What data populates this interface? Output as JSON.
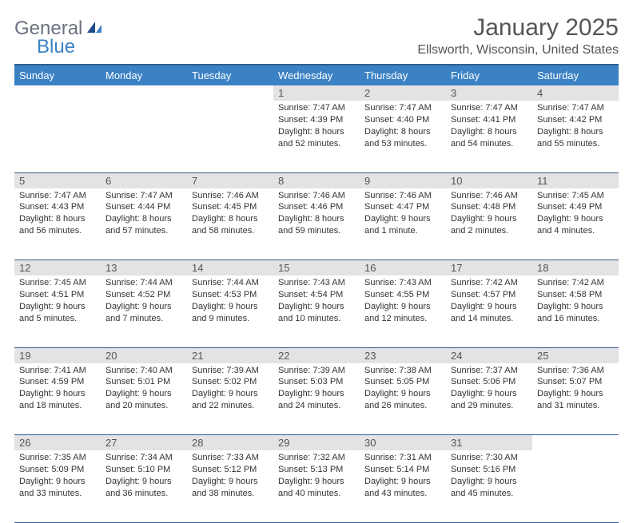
{
  "brand": {
    "part1": "General",
    "part2": "Blue"
  },
  "title": "January 2025",
  "location": "Ellsworth, Wisconsin, United States",
  "colors": {
    "header_bg": "#3b82c4",
    "header_border_top": "#2f5f8f",
    "row_divider": "#2f5f8f",
    "daynum_bg": "#e3e3e3",
    "text": "#333333",
    "muted": "#555555",
    "page_bg": "#ffffff"
  },
  "typography": {
    "title_fontsize": 30,
    "location_fontsize": 16,
    "weekday_fontsize": 13,
    "daynum_fontsize": 13,
    "cell_fontsize": 11,
    "font_family": "Arial"
  },
  "weekdays": [
    "Sunday",
    "Monday",
    "Tuesday",
    "Wednesday",
    "Thursday",
    "Friday",
    "Saturday"
  ],
  "weeks": [
    [
      null,
      null,
      null,
      {
        "n": "1",
        "sr": "7:47 AM",
        "ss": "4:39 PM",
        "dl": "8 hours and 52 minutes."
      },
      {
        "n": "2",
        "sr": "7:47 AM",
        "ss": "4:40 PM",
        "dl": "8 hours and 53 minutes."
      },
      {
        "n": "3",
        "sr": "7:47 AM",
        "ss": "4:41 PM",
        "dl": "8 hours and 54 minutes."
      },
      {
        "n": "4",
        "sr": "7:47 AM",
        "ss": "4:42 PM",
        "dl": "8 hours and 55 minutes."
      }
    ],
    [
      {
        "n": "5",
        "sr": "7:47 AM",
        "ss": "4:43 PM",
        "dl": "8 hours and 56 minutes."
      },
      {
        "n": "6",
        "sr": "7:47 AM",
        "ss": "4:44 PM",
        "dl": "8 hours and 57 minutes."
      },
      {
        "n": "7",
        "sr": "7:46 AM",
        "ss": "4:45 PM",
        "dl": "8 hours and 58 minutes."
      },
      {
        "n": "8",
        "sr": "7:46 AM",
        "ss": "4:46 PM",
        "dl": "8 hours and 59 minutes."
      },
      {
        "n": "9",
        "sr": "7:46 AM",
        "ss": "4:47 PM",
        "dl": "9 hours and 1 minute."
      },
      {
        "n": "10",
        "sr": "7:46 AM",
        "ss": "4:48 PM",
        "dl": "9 hours and 2 minutes."
      },
      {
        "n": "11",
        "sr": "7:45 AM",
        "ss": "4:49 PM",
        "dl": "9 hours and 4 minutes."
      }
    ],
    [
      {
        "n": "12",
        "sr": "7:45 AM",
        "ss": "4:51 PM",
        "dl": "9 hours and 5 minutes."
      },
      {
        "n": "13",
        "sr": "7:44 AM",
        "ss": "4:52 PM",
        "dl": "9 hours and 7 minutes."
      },
      {
        "n": "14",
        "sr": "7:44 AM",
        "ss": "4:53 PM",
        "dl": "9 hours and 9 minutes."
      },
      {
        "n": "15",
        "sr": "7:43 AM",
        "ss": "4:54 PM",
        "dl": "9 hours and 10 minutes."
      },
      {
        "n": "16",
        "sr": "7:43 AM",
        "ss": "4:55 PM",
        "dl": "9 hours and 12 minutes."
      },
      {
        "n": "17",
        "sr": "7:42 AM",
        "ss": "4:57 PM",
        "dl": "9 hours and 14 minutes."
      },
      {
        "n": "18",
        "sr": "7:42 AM",
        "ss": "4:58 PM",
        "dl": "9 hours and 16 minutes."
      }
    ],
    [
      {
        "n": "19",
        "sr": "7:41 AM",
        "ss": "4:59 PM",
        "dl": "9 hours and 18 minutes."
      },
      {
        "n": "20",
        "sr": "7:40 AM",
        "ss": "5:01 PM",
        "dl": "9 hours and 20 minutes."
      },
      {
        "n": "21",
        "sr": "7:39 AM",
        "ss": "5:02 PM",
        "dl": "9 hours and 22 minutes."
      },
      {
        "n": "22",
        "sr": "7:39 AM",
        "ss": "5:03 PM",
        "dl": "9 hours and 24 minutes."
      },
      {
        "n": "23",
        "sr": "7:38 AM",
        "ss": "5:05 PM",
        "dl": "9 hours and 26 minutes."
      },
      {
        "n": "24",
        "sr": "7:37 AM",
        "ss": "5:06 PM",
        "dl": "9 hours and 29 minutes."
      },
      {
        "n": "25",
        "sr": "7:36 AM",
        "ss": "5:07 PM",
        "dl": "9 hours and 31 minutes."
      }
    ],
    [
      {
        "n": "26",
        "sr": "7:35 AM",
        "ss": "5:09 PM",
        "dl": "9 hours and 33 minutes."
      },
      {
        "n": "27",
        "sr": "7:34 AM",
        "ss": "5:10 PM",
        "dl": "9 hours and 36 minutes."
      },
      {
        "n": "28",
        "sr": "7:33 AM",
        "ss": "5:12 PM",
        "dl": "9 hours and 38 minutes."
      },
      {
        "n": "29",
        "sr": "7:32 AM",
        "ss": "5:13 PM",
        "dl": "9 hours and 40 minutes."
      },
      {
        "n": "30",
        "sr": "7:31 AM",
        "ss": "5:14 PM",
        "dl": "9 hours and 43 minutes."
      },
      {
        "n": "31",
        "sr": "7:30 AM",
        "ss": "5:16 PM",
        "dl": "9 hours and 45 minutes."
      },
      null
    ]
  ],
  "labels": {
    "sunrise_prefix": "Sunrise: ",
    "sunset_prefix": "Sunset: ",
    "daylight_prefix": "Daylight: "
  }
}
